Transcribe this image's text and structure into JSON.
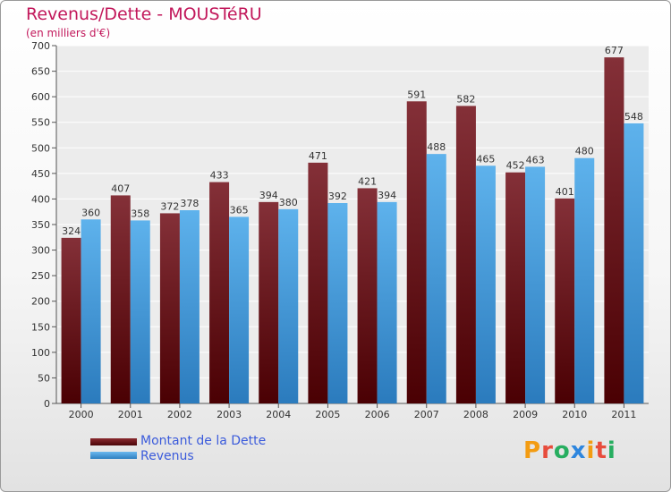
{
  "title": "Revenus/Dette - MOUSTéRU",
  "subtitle": "(en milliers d'€)",
  "logo_text": "Proxiti",
  "colors": {
    "dette": "#7a1f25",
    "revenus": "#4ba3e3",
    "title": "#c2185b",
    "legend_text": "#3b5bdb"
  },
  "legend": [
    {
      "label": "Montant de la Dette",
      "color": "#7a1f25"
    },
    {
      "label": "Revenus",
      "color": "#4ba3e3"
    }
  ],
  "chart_data": {
    "type": "bar",
    "title": "Revenus/Dette - MOUSTéRU",
    "subtitle": "(en milliers d'€)",
    "categories": [
      "2000",
      "2001",
      "2002",
      "2003",
      "2004",
      "2005",
      "2006",
      "2007",
      "2008",
      "2009",
      "2010",
      "2011"
    ],
    "series": [
      {
        "name": "Montant de la Dette",
        "color": "#7a1f25",
        "values": [
          324,
          407,
          372,
          433,
          394,
          471,
          421,
          591,
          582,
          452,
          401,
          677
        ]
      },
      {
        "name": "Revenus",
        "color": "#4ba3e3",
        "values": [
          360,
          358,
          378,
          365,
          380,
          392,
          394,
          488,
          465,
          463,
          480,
          548
        ]
      }
    ],
    "ylim": [
      0,
      700
    ],
    "yticks": [
      0,
      50,
      100,
      150,
      200,
      250,
      300,
      350,
      400,
      450,
      500,
      550,
      600,
      650,
      700
    ],
    "grid": true,
    "legend_position": "bottom-left"
  }
}
